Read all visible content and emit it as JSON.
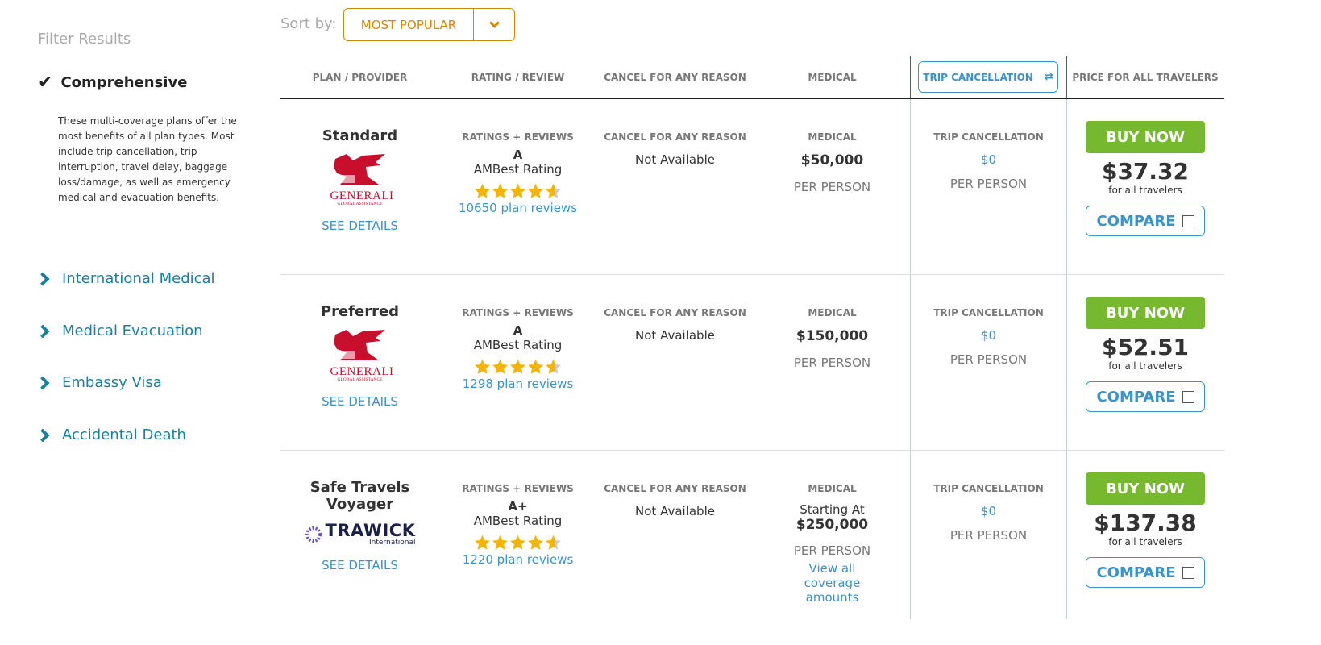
{
  "sidebar": {
    "title": "Filter Results",
    "active": {
      "label": "Comprehensive",
      "description": "These multi-coverage plans offer the most benefits of all plan types. Most include trip cancellation, trip interruption, travel delay, baggage loss/damage, as well as emergency medical and evacuation benefits."
    },
    "items": [
      {
        "label": "International Medical"
      },
      {
        "label": "Medical Evacuation"
      },
      {
        "label": "Embassy Visa"
      },
      {
        "label": "Accidental Death"
      }
    ]
  },
  "sort": {
    "label": "Sort by:",
    "value": "MOST POPULAR"
  },
  "headers": {
    "plan": "PLAN / PROVIDER",
    "rating": "RATING / REVIEW",
    "cfar": "CANCEL FOR ANY REASON",
    "medical": "MEDICAL",
    "trip": "TRIP CANCELLATION",
    "price": "PRICE FOR ALL TRAVELERS"
  },
  "colors": {
    "accent": "#3a93c9",
    "buy": "#76b82e",
    "sort": "#d48a00",
    "star": "#f5b400",
    "generali": "#c8102e",
    "travick": "#1b1f4b"
  },
  "plans": [
    {
      "name": "Standard",
      "provider_logo": "GENERALI",
      "provider_sub": "GLOBAL ASSISTANCE",
      "details": "SEE DETAILS",
      "ratings_label": "RATINGS + REVIEWS",
      "grade": "A",
      "grade_label": "AMBest Rating",
      "stars": 4.6,
      "reviews": "10650 plan reviews",
      "cfar_label": "CANCEL FOR ANY REASON",
      "cfar": "Not Available",
      "medical_label": "MEDICAL",
      "medical_prefix": "",
      "medical": "$50,000",
      "medical_unit": "PER PERSON",
      "medical_link": "",
      "trip_label": "TRIP CANCELLATION",
      "trip": "$0",
      "trip_unit": "PER PERSON",
      "buy": "BUY NOW",
      "price": "$37.32",
      "price_note": "for all travelers",
      "compare": "COMPARE"
    },
    {
      "name": "Preferred",
      "provider_logo": "GENERALI",
      "provider_sub": "GLOBAL ASSISTANCE",
      "details": "SEE DETAILS",
      "ratings_label": "RATINGS + REVIEWS",
      "grade": "A",
      "grade_label": "AMBest Rating",
      "stars": 4.6,
      "reviews": "1298 plan reviews",
      "cfar_label": "CANCEL FOR ANY REASON",
      "cfar": "Not Available",
      "medical_label": "MEDICAL",
      "medical_prefix": "",
      "medical": "$150,000",
      "medical_unit": "PER PERSON",
      "medical_link": "",
      "trip_label": "TRIP CANCELLATION",
      "trip": "$0",
      "trip_unit": "PER PERSON",
      "buy": "BUY NOW",
      "price": "$52.51",
      "price_note": "for all travelers",
      "compare": "COMPARE"
    },
    {
      "name": "Safe Travels Voyager",
      "provider_logo": "TRAWICK",
      "provider_sub": "International",
      "details": "SEE DETAILS",
      "ratings_label": "RATINGS + REVIEWS",
      "grade": "A+",
      "grade_label": "AMBest Rating",
      "stars": 4.6,
      "reviews": "1220 plan reviews",
      "cfar_label": "CANCEL FOR ANY REASON",
      "cfar": "Not Available",
      "medical_label": "MEDICAL",
      "medical_prefix": "Starting At",
      "medical": "$250,000",
      "medical_unit": "PER PERSON",
      "medical_link": "View all coverage amounts",
      "trip_label": "TRIP CANCELLATION",
      "trip": "$0",
      "trip_unit": "PER PERSON",
      "buy": "BUY NOW",
      "price": "$137.38",
      "price_note": "for all travelers",
      "compare": "COMPARE"
    }
  ]
}
